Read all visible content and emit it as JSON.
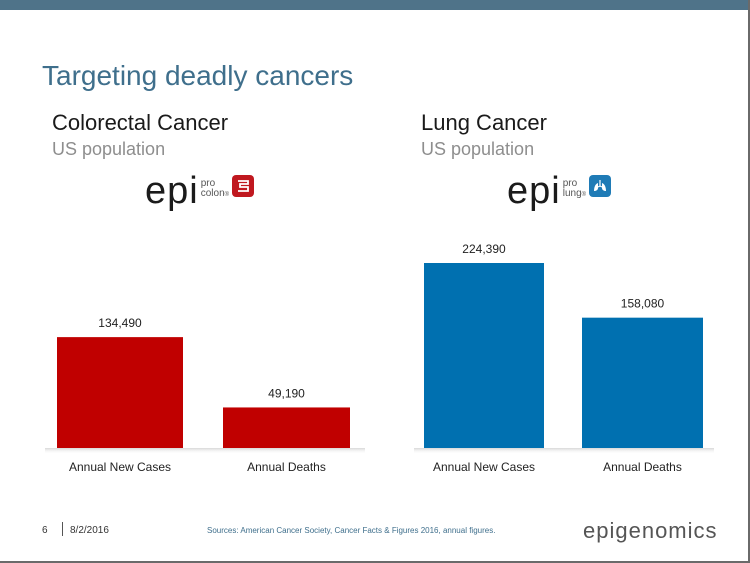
{
  "slide": {
    "title": "Targeting deadly cancers",
    "footer": {
      "page": "6",
      "date": "8/2/2016",
      "sources": "Sources: American Cancer Society, Cancer Facts & Figures 2016, annual figures.",
      "brand": "epigenomics"
    }
  },
  "panels": [
    {
      "heading": "Colorectal Cancer",
      "subheading": "US population",
      "logo": {
        "main": "epi",
        "top": "pro",
        "bottom": "colon",
        "trademark": "®",
        "icon": "colon-icon",
        "color": "#c0181f"
      }
    },
    {
      "heading": "Lung Cancer",
      "subheading": "US population",
      "logo": {
        "main": "epi",
        "top": "pro",
        "bottom": "lung",
        "trademark": "®",
        "icon": "lungs-icon",
        "color": "#1f7bb6"
      }
    }
  ],
  "chart_data": [
    {
      "type": "bar",
      "categories": [
        "Annual New Cases",
        "Annual Deaths"
      ],
      "values": [
        134490,
        49190
      ],
      "data_labels": [
        "134,490",
        "49,190"
      ],
      "color": "#c00000",
      "ylim": [
        0,
        250000
      ]
    },
    {
      "type": "bar",
      "categories": [
        "Annual New Cases",
        "Annual Deaths"
      ],
      "values": [
        224390,
        158080
      ],
      "data_labels": [
        "224,390",
        "158,080"
      ],
      "color": "#0070b0",
      "ylim": [
        0,
        250000
      ]
    }
  ]
}
